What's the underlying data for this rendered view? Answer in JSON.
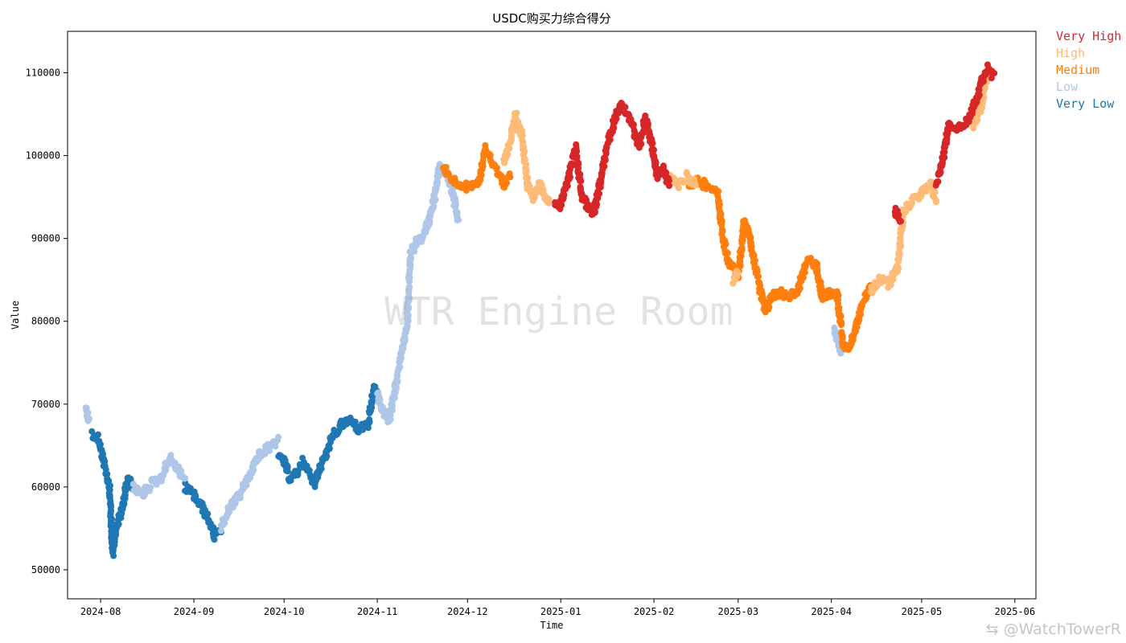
{
  "watermark": "WTR Engine Room",
  "credit": "⇆ @WatchTowerR",
  "legend": [
    {
      "label": "Very High",
      "color": "#d62728"
    },
    {
      "label": "High",
      "color": "#ffbb78"
    },
    {
      "label": "Medium",
      "color": "#ff7f0e"
    },
    {
      "label": "Low",
      "color": "#aec7e8"
    },
    {
      "label": "Very Low",
      "color": "#1f77b4"
    }
  ],
  "chart_data": {
    "type": "scatter",
    "title": "USDC购买力综合得分",
    "xlabel": "Time",
    "ylabel": "Value",
    "x_ticks": [
      "2024-08",
      "2024-09",
      "2024-10",
      "2024-11",
      "2024-12",
      "2025-01",
      "2025-02",
      "2025-03",
      "2025-04",
      "2025-05",
      "2025-06"
    ],
    "y_ticks": [
      "50000",
      "60000",
      "70000",
      "80000",
      "90000",
      "100000",
      "110000"
    ],
    "xlim": [
      "2024-07-21",
      "2025-06-08"
    ],
    "ylim": [
      46500,
      115000
    ],
    "legend_position": "outside-right",
    "series": [
      {
        "name": "Very Low",
        "color": "#1f77b4",
        "segments": [
          [
            [
              "2024-07-29",
              66500
            ],
            [
              "2024-07-31",
              66000
            ],
            [
              "2024-08-02",
              63000
            ],
            [
              "2024-08-04",
              60000
            ],
            [
              "2024-08-05",
              52000
            ],
            [
              "2024-08-06",
              55000
            ],
            [
              "2024-08-08",
              57000
            ],
            [
              "2024-08-10",
              61000
            ],
            [
              "2024-08-12",
              60000
            ]
          ],
          [
            [
              "2024-08-29",
              60000
            ],
            [
              "2024-09-01",
              59000
            ],
            [
              "2024-09-03",
              58000
            ],
            [
              "2024-09-06",
              56000
            ],
            [
              "2024-09-08",
              54000
            ],
            [
              "2024-09-10",
              55000
            ]
          ],
          [
            [
              "2024-09-29",
              63500
            ],
            [
              "2024-10-01",
              63000
            ],
            [
              "2024-10-03",
              61000
            ],
            [
              "2024-10-05",
              61500
            ],
            [
              "2024-10-07",
              63000
            ],
            [
              "2024-10-09",
              62000
            ],
            [
              "2024-10-11",
              60500
            ],
            [
              "2024-10-13",
              62500
            ],
            [
              "2024-10-15",
              64000
            ],
            [
              "2024-10-17",
              66000
            ],
            [
              "2024-10-20",
              67500
            ],
            [
              "2024-10-23",
              68000
            ],
            [
              "2024-10-26",
              67000
            ],
            [
              "2024-10-29",
              67500
            ],
            [
              "2024-10-31",
              72000
            ],
            [
              "2024-11-01",
              71000
            ]
          ]
        ]
      },
      {
        "name": "Low",
        "color": "#aec7e8",
        "segments": [
          [
            [
              "2024-07-27",
              69500
            ],
            [
              "2024-07-28",
              68000
            ]
          ],
          [
            [
              "2024-08-12",
              60000
            ],
            [
              "2024-08-15",
              59000
            ],
            [
              "2024-08-18",
              60500
            ],
            [
              "2024-08-21",
              61000
            ],
            [
              "2024-08-24",
              63500
            ],
            [
              "2024-08-27",
              62000
            ],
            [
              "2024-08-29",
              61000
            ]
          ],
          [
            [
              "2024-09-10",
              55000
            ],
            [
              "2024-09-13",
              57500
            ],
            [
              "2024-09-16",
              59000
            ],
            [
              "2024-09-19",
              61000
            ],
            [
              "2024-09-22",
              63500
            ],
            [
              "2024-09-25",
              64500
            ],
            [
              "2024-09-29",
              65500
            ]
          ],
          [
            [
              "2024-11-01",
              71000
            ],
            [
              "2024-11-03",
              69000
            ],
            [
              "2024-11-05",
              68000
            ],
            [
              "2024-11-07",
              72000
            ],
            [
              "2024-11-09",
              76000
            ],
            [
              "2024-11-11",
              80000
            ],
            [
              "2024-11-12",
              88000
            ],
            [
              "2024-11-14",
              89500
            ],
            [
              "2024-11-16",
              90000
            ],
            [
              "2024-11-18",
              92000
            ],
            [
              "2024-11-20",
              95000
            ],
            [
              "2024-11-22",
              99000
            ],
            [
              "2024-11-25",
              97000
            ],
            [
              "2024-11-27",
              94000
            ],
            [
              "2024-11-28",
              92000
            ]
          ],
          [
            [
              "2025-04-02",
              79000
            ],
            [
              "2025-04-04",
              76500
            ]
          ]
        ]
      },
      {
        "name": "Medium",
        "color": "#ff7f0e",
        "segments": [
          [
            [
              "2024-11-23",
              98500
            ],
            [
              "2024-11-26",
              97000
            ],
            [
              "2024-11-29",
              96500
            ],
            [
              "2024-12-02",
              96000
            ],
            [
              "2024-12-05",
              97000
            ],
            [
              "2024-12-07",
              101000
            ],
            [
              "2024-12-10",
              98500
            ],
            [
              "2024-12-13",
              96500
            ],
            [
              "2024-12-15",
              97500
            ]
          ],
          [
            [
              "2025-02-12",
              96500
            ],
            [
              "2025-02-15",
              97000
            ],
            [
              "2025-02-18",
              96500
            ],
            [
              "2025-02-22",
              96000
            ],
            [
              "2025-02-24",
              90000
            ],
            [
              "2025-02-26",
              87000
            ],
            [
              "2025-03-01",
              85500
            ],
            [
              "2025-03-03",
              92000
            ],
            [
              "2025-03-05",
              90000
            ],
            [
              "2025-03-07",
              86000
            ],
            [
              "2025-03-10",
              81000
            ],
            [
              "2025-03-12",
              83000
            ],
            [
              "2025-03-15",
              83500
            ],
            [
              "2025-03-18",
              83000
            ],
            [
              "2025-03-21",
              84000
            ],
            [
              "2025-03-24",
              87500
            ],
            [
              "2025-03-27",
              86500
            ],
            [
              "2025-03-29",
              83000
            ],
            [
              "2025-04-01",
              83500
            ],
            [
              "2025-04-03",
              83000
            ],
            [
              "2025-04-05",
              77000
            ],
            [
              "2025-04-07",
              76500
            ],
            [
              "2025-04-09",
              79000
            ],
            [
              "2025-04-11",
              82000
            ],
            [
              "2025-04-14",
              84000
            ]
          ]
        ]
      },
      {
        "name": "High",
        "color": "#ffbb78",
        "segments": [
          [
            [
              "2024-12-13",
              99000
            ],
            [
              "2024-12-15",
              101500
            ],
            [
              "2024-12-17",
              105000
            ],
            [
              "2024-12-19",
              102500
            ],
            [
              "2024-12-21",
              96500
            ],
            [
              "2024-12-23",
              95000
            ],
            [
              "2024-12-25",
              96500
            ],
            [
              "2024-12-28",
              94500
            ]
          ],
          [
            [
              "2025-02-06",
              97500
            ],
            [
              "2025-02-09",
              96500
            ],
            [
              "2025-02-12",
              97500
            ],
            [
              "2025-02-15",
              96500
            ]
          ],
          [
            [
              "2025-02-27",
              85000
            ],
            [
              "2025-03-01",
              86000
            ]
          ],
          [
            [
              "2025-04-14",
              83500
            ],
            [
              "2025-04-17",
              85000
            ],
            [
              "2025-04-20",
              84500
            ],
            [
              "2025-04-23",
              86500
            ],
            [
              "2025-04-25",
              93500
            ],
            [
              "2025-04-28",
              94500
            ],
            [
              "2025-05-01",
              95500
            ],
            [
              "2025-05-04",
              96500
            ],
            [
              "2025-05-06",
              94500
            ]
          ],
          [
            [
              "2025-05-18",
              103500
            ],
            [
              "2025-05-21",
              106000
            ],
            [
              "2025-05-23",
              110500
            ]
          ]
        ]
      },
      {
        "name": "Very High",
        "color": "#d62728",
        "segments": [
          [
            [
              "2024-12-30",
              94500
            ],
            [
              "2025-01-01",
              94000
            ],
            [
              "2025-01-04",
              98000
            ],
            [
              "2025-01-06",
              101000
            ],
            [
              "2025-01-08",
              95000
            ],
            [
              "2025-01-10",
              94000
            ],
            [
              "2025-01-12",
              93000
            ],
            [
              "2025-01-14",
              96500
            ],
            [
              "2025-01-16",
              100500
            ],
            [
              "2025-01-19",
              104500
            ],
            [
              "2025-01-21",
              106000
            ],
            [
              "2025-01-24",
              104500
            ],
            [
              "2025-01-27",
              101000
            ],
            [
              "2025-01-29",
              104500
            ],
            [
              "2025-01-31",
              102000
            ],
            [
              "2025-02-02",
              97500
            ],
            [
              "2025-02-04",
              98500
            ],
            [
              "2025-02-06",
              96500
            ]
          ],
          [
            [
              "2025-04-22",
              93500
            ],
            [
              "2025-04-24",
              92000
            ]
          ],
          [
            [
              "2025-05-06",
              96500
            ],
            [
              "2025-05-08",
              99500
            ],
            [
              "2025-05-10",
              103500
            ],
            [
              "2025-05-13",
              103500
            ],
            [
              "2025-05-16",
              104000
            ],
            [
              "2025-05-19",
              106500
            ],
            [
              "2025-05-21",
              109000
            ],
            [
              "2025-05-23",
              110500
            ],
            [
              "2025-05-25",
              109500
            ]
          ]
        ]
      }
    ]
  }
}
